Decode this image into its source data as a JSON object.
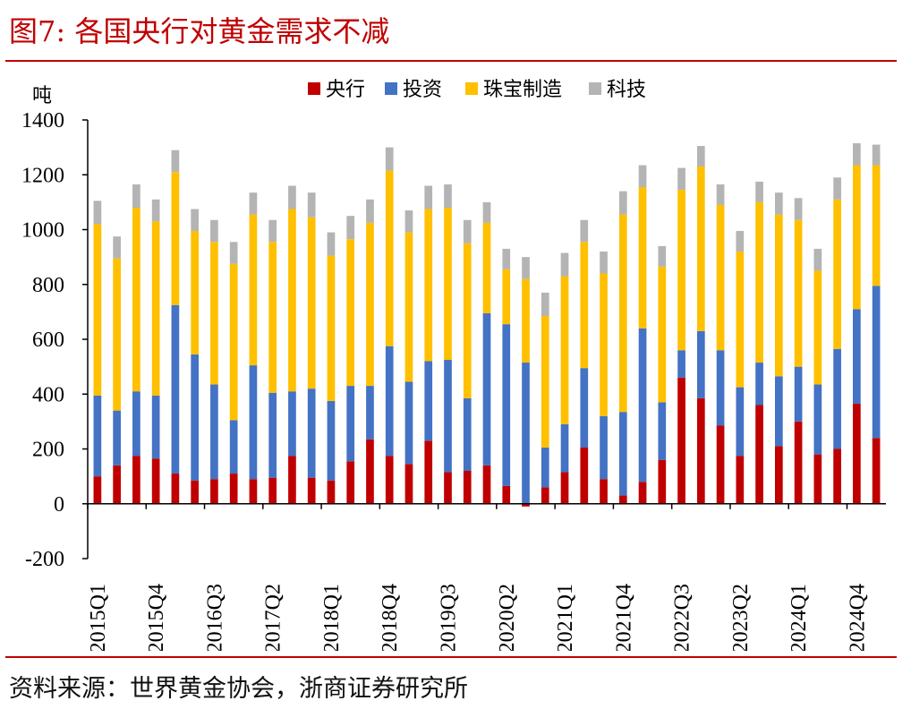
{
  "title": "图7:  各国央行对黄金需求不减",
  "source": "资料来源：世界黄金协会，浙商证券研究所",
  "colors": {
    "central_bank": "#c00000",
    "investment": "#4472c4",
    "jewellery": "#ffc000",
    "technology": "#b4b4b4",
    "title_red": "#c00000"
  },
  "chart_data": {
    "type": "bar",
    "stacked": true,
    "ylabel": "吨",
    "xlabel": "",
    "ylim": [
      -200,
      1400
    ],
    "yticks": [
      -200,
      0,
      200,
      400,
      600,
      800,
      1000,
      1200,
      1400
    ],
    "grid": false,
    "legend_position": "top-center",
    "xtick_labels": [
      "2015Q1",
      "2015Q4",
      "2016Q3",
      "2017Q2",
      "2018Q1",
      "2018Q4",
      "2019Q3",
      "2020Q2",
      "2021Q1",
      "2021Q4",
      "2022Q3",
      "2023Q2",
      "2024Q1",
      "2024Q4"
    ],
    "categories": [
      "2015Q1",
      "2015Q2",
      "2015Q3",
      "2015Q4",
      "2016Q1",
      "2016Q2",
      "2016Q3",
      "2016Q4",
      "2017Q1",
      "2017Q2",
      "2017Q3",
      "2017Q4",
      "2018Q1",
      "2018Q2",
      "2018Q3",
      "2018Q4",
      "2019Q1",
      "2019Q2",
      "2019Q3",
      "2019Q4",
      "2020Q1",
      "2020Q2",
      "2020Q3",
      "2020Q4",
      "2021Q1",
      "2021Q2",
      "2021Q3",
      "2021Q4",
      "2022Q1",
      "2022Q2",
      "2022Q3",
      "2022Q4",
      "2023Q1",
      "2023Q2",
      "2023Q3",
      "2023Q4",
      "2024Q1",
      "2024Q2",
      "2024Q3",
      "2024Q4",
      "2025Q1"
    ],
    "series": [
      {
        "name": "央行",
        "color": "#c00000",
        "values": [
          100,
          140,
          175,
          165,
          110,
          85,
          90,
          110,
          90,
          95,
          175,
          95,
          85,
          155,
          235,
          175,
          145,
          230,
          115,
          120,
          140,
          65,
          -10,
          60,
          115,
          205,
          90,
          30,
          80,
          160,
          460,
          385,
          285,
          175,
          360,
          210,
          300,
          180,
          200,
          365,
          240
        ]
      },
      {
        "name": "投资",
        "color": "#4472c4",
        "values": [
          295,
          200,
          235,
          230,
          615,
          460,
          345,
          195,
          415,
          310,
          235,
          325,
          290,
          275,
          195,
          400,
          300,
          290,
          410,
          265,
          555,
          590,
          515,
          145,
          175,
          290,
          230,
          305,
          560,
          210,
          100,
          245,
          275,
          250,
          155,
          255,
          200,
          255,
          365,
          345,
          555
        ]
      },
      {
        "name": "珠宝制造",
        "color": "#ffc000",
        "values": [
          625,
          555,
          670,
          635,
          485,
          450,
          520,
          570,
          550,
          550,
          665,
          625,
          530,
          535,
          595,
          640,
          545,
          555,
          555,
          565,
          330,
          200,
          305,
          480,
          540,
          460,
          520,
          720,
          515,
          495,
          585,
          600,
          530,
          495,
          585,
          590,
          535,
          415,
          545,
          525,
          440
        ]
      },
      {
        "name": "科技",
        "color": "#b4b4b4",
        "values": [
          85,
          80,
          85,
          80,
          80,
          80,
          80,
          80,
          80,
          80,
          85,
          90,
          85,
          85,
          85,
          85,
          80,
          85,
          85,
          85,
          75,
          75,
          80,
          85,
          85,
          80,
          80,
          85,
          80,
          75,
          80,
          75,
          75,
          75,
          75,
          80,
          80,
          80,
          80,
          80,
          75
        ]
      }
    ]
  }
}
